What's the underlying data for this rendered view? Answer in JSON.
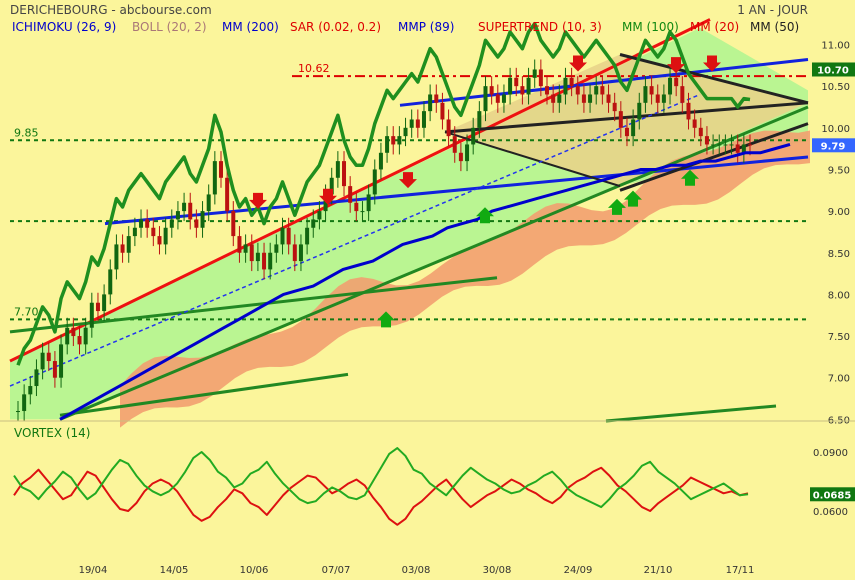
{
  "header": {
    "title": "DERICHEBOURG - abcbourse.com",
    "period": "1 AN - JOUR"
  },
  "legend": [
    {
      "label": "ICHIMOKU (26, 9)",
      "color": "#0000cc"
    },
    {
      "label": "BOLL (20, 2)",
      "color": "#aa7777"
    },
    {
      "label": "MM (200)",
      "color": "#0000cc"
    },
    {
      "label": "SAR (0.02, 0.2)",
      "color": "#dd0000"
    },
    {
      "label": "MMP (89)",
      "color": "#0000cc"
    },
    {
      "label": "SUPERTREND (10, 3)",
      "color": "#dd0000"
    },
    {
      "label": "MM (100)",
      "color": "#118811"
    },
    {
      "label": "MM (20)",
      "color": "#dd0000"
    },
    {
      "label": "MM (50)",
      "color": "#222222"
    }
  ],
  "chart_data": [
    {
      "type": "line",
      "panel": "price",
      "yticks": [
        6.5,
        7.0,
        7.5,
        8.0,
        8.5,
        9.0,
        9.5,
        10.0,
        10.5,
        11.0
      ],
      "ylim": [
        6.5,
        11.3
      ],
      "xlabels": [
        "19/04",
        "14/05",
        "10/06",
        "07/07",
        "03/08",
        "30/08",
        "24/09",
        "21/10",
        "17/11"
      ],
      "levels": [
        {
          "label": "10.62",
          "value": 10.62,
          "color": "#dd0000",
          "style": "dash-dot"
        },
        {
          "label": "9.85",
          "value": 9.85,
          "color": "#117711",
          "style": "dotted"
        },
        {
          "label": "",
          "value": 8.88,
          "color": "#117711",
          "style": "dotted"
        },
        {
          "label": "7.70",
          "value": 7.7,
          "color": "#117711",
          "style": "dotted"
        }
      ],
      "price_tags": [
        {
          "label": "10.70",
          "value": 10.7,
          "color": "#117711"
        },
        {
          "label": "9.79",
          "value": 9.79,
          "color": "#3366ff"
        }
      ],
      "series": [
        {
          "name": "close",
          "color": "#228822",
          "values": [
            6.6,
            6.8,
            6.9,
            7.1,
            7.3,
            7.2,
            7.0,
            7.4,
            7.6,
            7.5,
            7.4,
            7.6,
            7.9,
            7.8,
            8.0,
            8.3,
            8.6,
            8.5,
            8.7,
            8.8,
            8.9,
            8.8,
            8.7,
            8.6,
            8.8,
            8.9,
            9.0,
            9.1,
            8.9,
            8.8,
            9.0,
            9.2,
            9.6,
            9.4,
            9.0,
            8.7,
            8.5,
            8.6,
            8.4,
            8.5,
            8.3,
            8.5,
            8.6,
            8.8,
            8.6,
            8.4,
            8.6,
            8.8,
            8.9,
            9.0,
            9.2,
            9.4,
            9.6,
            9.3,
            9.1,
            9.0,
            9.0,
            9.2,
            9.5,
            9.7,
            9.9,
            9.8,
            9.9,
            10.0,
            10.1,
            10.0,
            10.2,
            10.4,
            10.3,
            10.1,
            9.9,
            9.7,
            9.6,
            9.8,
            10.0,
            10.2,
            10.5,
            10.4,
            10.3,
            10.4,
            10.6,
            10.5,
            10.4,
            10.6,
            10.7,
            10.5,
            10.4,
            10.3,
            10.4,
            10.6,
            10.5,
            10.4,
            10.3,
            10.4,
            10.5,
            10.4,
            10.3,
            10.2,
            10.0,
            9.9,
            10.1,
            10.3,
            10.5,
            10.4,
            10.3,
            10.4,
            10.6,
            10.5,
            10.3,
            10.1,
            10.0,
            9.9,
            9.8,
            9.8,
            9.8,
            9.8,
            9.8,
            9.7,
            9.8,
            9.79
          ]
        },
        {
          "name": "ma200",
          "color": "#0000cc",
          "values": [
            6.5,
            6.6,
            6.7,
            6.8,
            6.9,
            7.0,
            7.1,
            7.2,
            7.3,
            7.4,
            7.5,
            7.6,
            7.7,
            7.8,
            7.9,
            8.0,
            8.05,
            8.1,
            8.2,
            8.3,
            8.35,
            8.4,
            8.5,
            8.6,
            8.65,
            8.7,
            8.8,
            8.85,
            8.9,
            9.0,
            9.05,
            9.1,
            9.15,
            9.2,
            9.25,
            9.3,
            9.35,
            9.4,
            9.45,
            9.5,
            9.5,
            9.55,
            9.55,
            9.6,
            9.6,
            9.65,
            9.7,
            9.7,
            9.75,
            9.8
          ]
        },
        {
          "name": "tenkan",
          "color": "#3344cc",
          "values": [
            6.9,
            7.0,
            7.1,
            7.2,
            7.3,
            7.4,
            7.5,
            7.6,
            7.7,
            7.8,
            7.9,
            8.0,
            8.1,
            8.2,
            8.3,
            8.4,
            8.5,
            8.6,
            8.7,
            8.8,
            8.9,
            9.0,
            9.1,
            9.2,
            9.3,
            9.4,
            9.5,
            9.6,
            9.7,
            9.8,
            9.9,
            10.0,
            10.1,
            10.2,
            10.3,
            10.4,
            10.5,
            10.6
          ]
        }
      ]
    },
    {
      "type": "line",
      "panel": "vortex",
      "title": "VORTEX (14)",
      "yticks": [
        0.06,
        0.09
      ],
      "ylim": [
        0.045,
        0.1
      ],
      "value_tag": {
        "label": "0.0685",
        "color": "#117711"
      },
      "series": [
        {
          "name": "vi_plus",
          "color": "#22aa22",
          "values": [
            0.078,
            0.072,
            0.07,
            0.066,
            0.071,
            0.075,
            0.08,
            0.077,
            0.071,
            0.066,
            0.069,
            0.075,
            0.081,
            0.086,
            0.084,
            0.078,
            0.073,
            0.07,
            0.068,
            0.07,
            0.074,
            0.08,
            0.087,
            0.09,
            0.086,
            0.08,
            0.077,
            0.072,
            0.074,
            0.079,
            0.081,
            0.085,
            0.079,
            0.074,
            0.07,
            0.066,
            0.064,
            0.065,
            0.069,
            0.072,
            0.07,
            0.067,
            0.066,
            0.068,
            0.075,
            0.082,
            0.089,
            0.092,
            0.088,
            0.081,
            0.079,
            0.074,
            0.071,
            0.068,
            0.073,
            0.078,
            0.082,
            0.079,
            0.076,
            0.074,
            0.071,
            0.069,
            0.07,
            0.073,
            0.075,
            0.078,
            0.08,
            0.076,
            0.071,
            0.068,
            0.066,
            0.064,
            0.062,
            0.066,
            0.071,
            0.074,
            0.078,
            0.083,
            0.085,
            0.08,
            0.077,
            0.074,
            0.07,
            0.066,
            0.068,
            0.07,
            0.072,
            0.074,
            0.071,
            0.068,
            0.0685
          ]
        },
        {
          "name": "vi_minus",
          "color": "#dd1111",
          "values": [
            0.068,
            0.074,
            0.077,
            0.081,
            0.076,
            0.071,
            0.066,
            0.068,
            0.074,
            0.08,
            0.078,
            0.072,
            0.066,
            0.061,
            0.06,
            0.064,
            0.07,
            0.074,
            0.076,
            0.074,
            0.07,
            0.064,
            0.058,
            0.055,
            0.057,
            0.062,
            0.066,
            0.071,
            0.069,
            0.064,
            0.062,
            0.058,
            0.063,
            0.068,
            0.072,
            0.075,
            0.078,
            0.077,
            0.073,
            0.069,
            0.071,
            0.074,
            0.076,
            0.073,
            0.067,
            0.062,
            0.056,
            0.053,
            0.056,
            0.062,
            0.065,
            0.069,
            0.073,
            0.076,
            0.071,
            0.066,
            0.062,
            0.065,
            0.068,
            0.07,
            0.073,
            0.076,
            0.074,
            0.071,
            0.069,
            0.066,
            0.064,
            0.067,
            0.072,
            0.075,
            0.077,
            0.08,
            0.082,
            0.078,
            0.073,
            0.07,
            0.066,
            0.062,
            0.06,
            0.064,
            0.067,
            0.07,
            0.073,
            0.077,
            0.075,
            0.073,
            0.071,
            0.069,
            0.07,
            0.068,
            0.069
          ]
        }
      ]
    }
  ]
}
